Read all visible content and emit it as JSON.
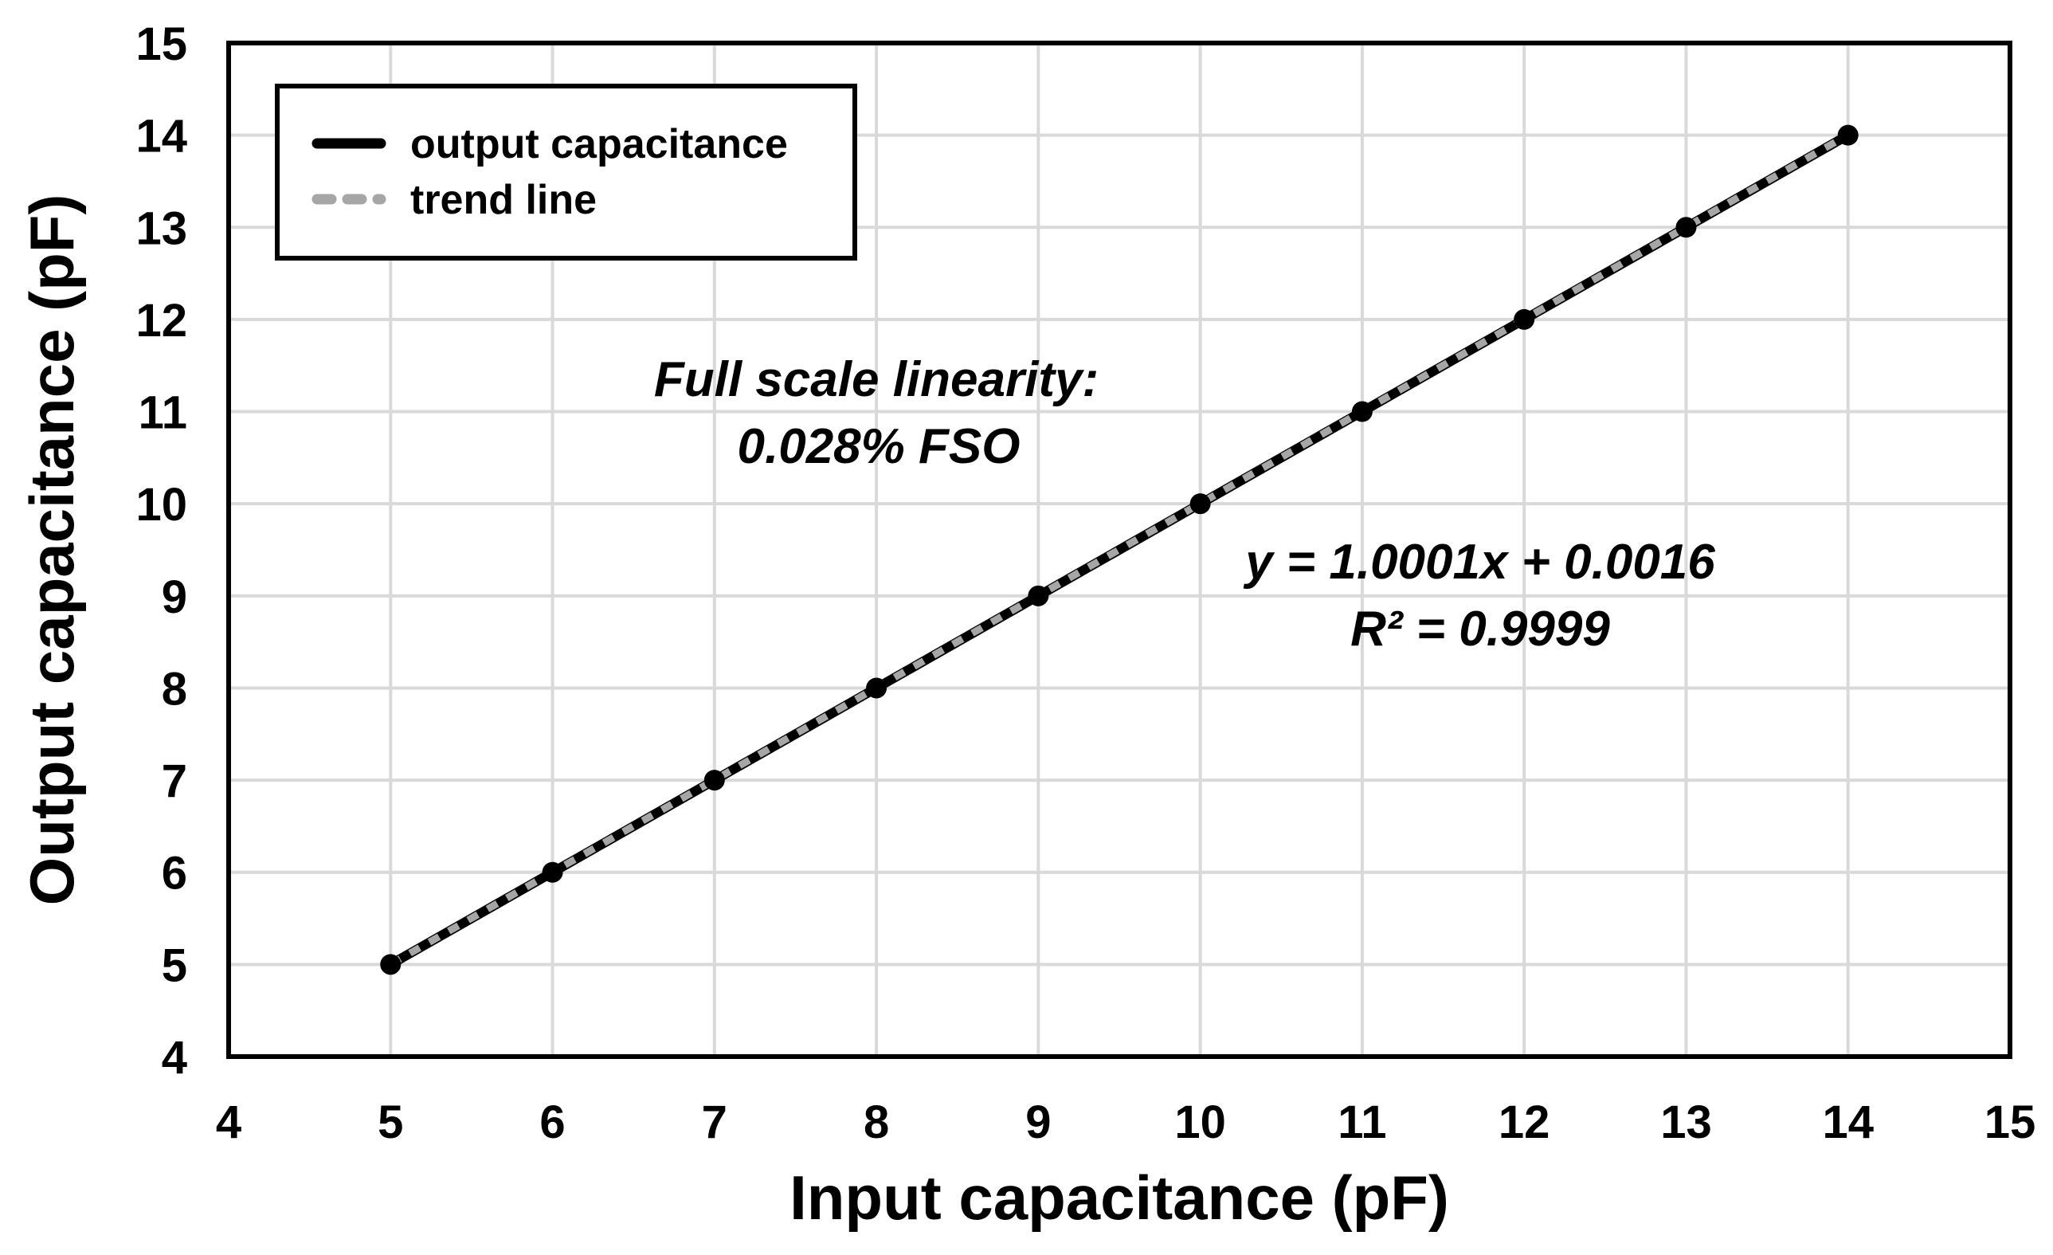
{
  "chart_data": {
    "type": "line",
    "title": "",
    "xlabel": "Input capacitance (pF)",
    "ylabel": "Output capacitance (pF)",
    "xlim": [
      4,
      15
    ],
    "ylim": [
      4,
      15
    ],
    "xticks": [
      4,
      5,
      6,
      7,
      8,
      9,
      10,
      11,
      12,
      13,
      14,
      15
    ],
    "yticks": [
      4,
      5,
      6,
      7,
      8,
      9,
      10,
      11,
      12,
      13,
      14,
      15
    ],
    "grid": true,
    "legend_position": "top-left",
    "series": [
      {
        "name": "output capacitance",
        "style": "solid-with-markers",
        "color": "#000000",
        "x": [
          5,
          6,
          7,
          8,
          9,
          10,
          11,
          12,
          13,
          14
        ],
        "y": [
          5,
          6,
          7,
          8,
          9,
          10,
          11,
          12,
          13,
          14
        ]
      },
      {
        "name": "trend line",
        "style": "dashed",
        "color": "#a6a6a6",
        "slope": 1.0001,
        "intercept": 0.0016,
        "x_range": [
          5,
          14
        ]
      }
    ],
    "annotations": {
      "linearity_line1": "Full scale linearity:",
      "linearity_line2": "0.028% FSO",
      "equation": "y = 1.0001x + 0.0016",
      "r_squared": "R² = 0.9999"
    }
  }
}
